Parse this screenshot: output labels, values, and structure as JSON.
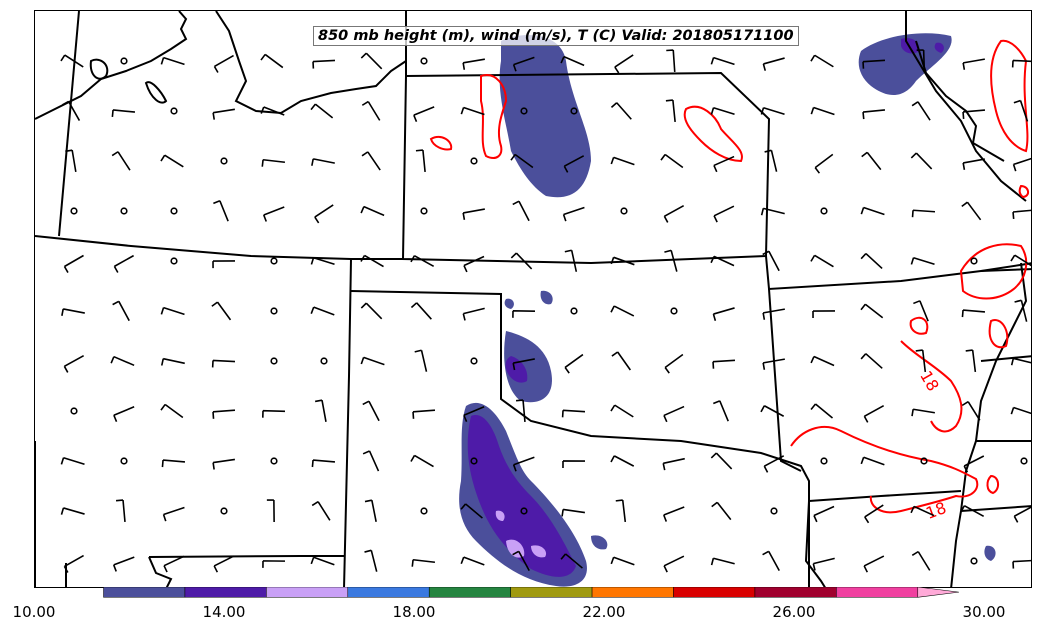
{
  "title": "850 mb height (m), wind (m/s), T (C) Valid: 201805171100",
  "contour_labels": [
    "18",
    "18"
  ],
  "colorbar": {
    "tick_labels": [
      "10.00",
      "14.00",
      "18.00",
      "22.00",
      "26.00",
      "30.00"
    ],
    "colors": [
      "#4b4f9b",
      "#4e1ba8",
      "#c9a0f6",
      "#3a79e0",
      "#258540",
      "#a09a10",
      "#ff7600",
      "#d90000",
      "#a0002e",
      "#f040a0",
      "#ffaad8"
    ]
  },
  "colors": {
    "state_borders": "#000000",
    "temperature_contour": "#ff0000",
    "fill_light_purple": "#4b4f9b",
    "fill_dark_purple": "#4e1ba8",
    "fill_lavender": "#c9a0f6"
  }
}
